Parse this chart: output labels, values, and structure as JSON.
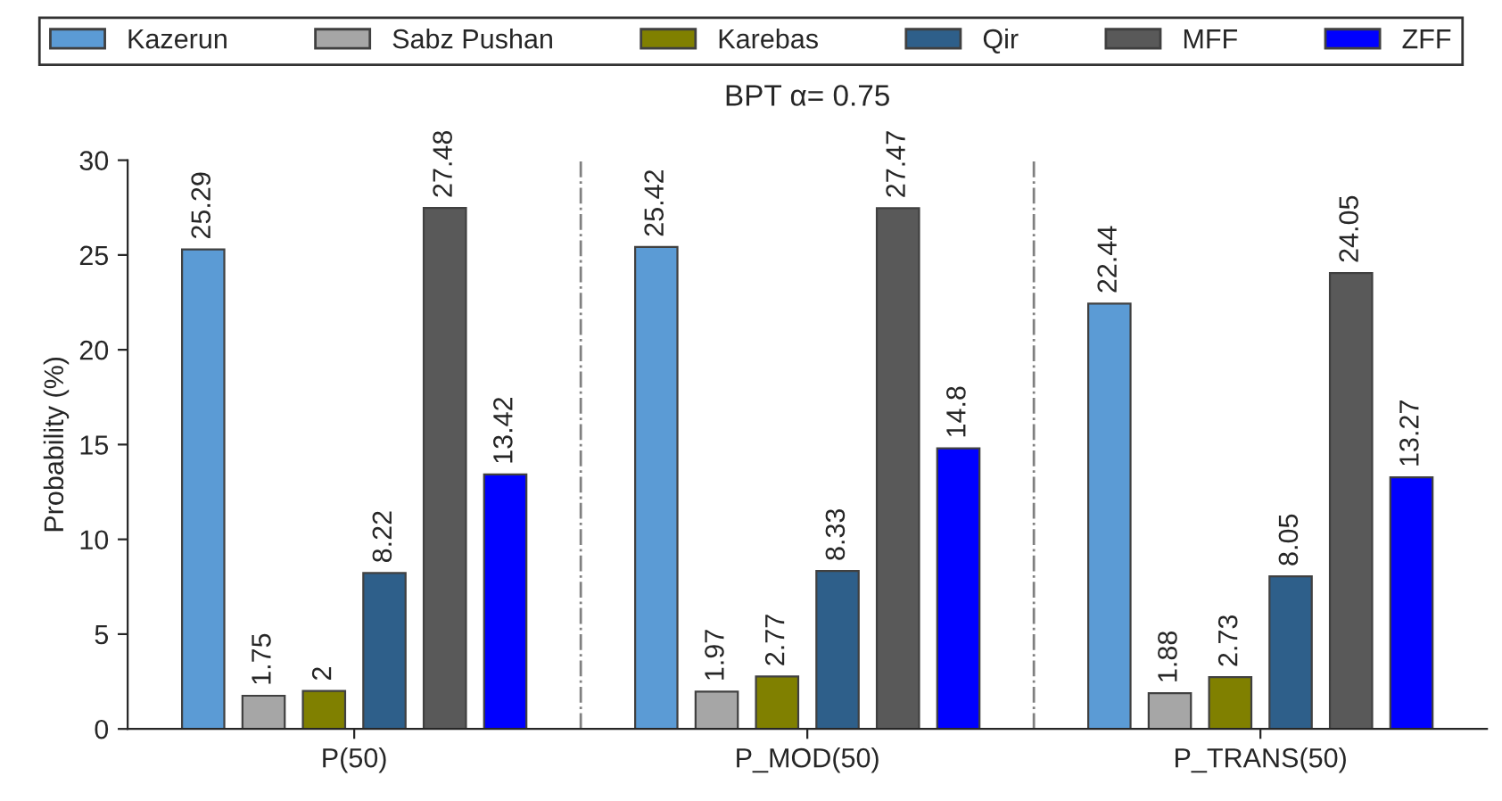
{
  "chart_data": {
    "type": "bar",
    "title": "BPT α= 0.75",
    "ylabel": "Probability (%)",
    "categories": [
      "P(50)",
      "P_MOD(50)",
      "P_TRANS(50)"
    ],
    "series": [
      {
        "name": "Kazerun",
        "color": "#5b9bd5",
        "values": [
          25.29,
          25.42,
          22.44
        ]
      },
      {
        "name": "Sabz Pushan",
        "color": "#a6a6a6",
        "values": [
          1.75,
          1.97,
          1.88
        ]
      },
      {
        "name": "Karebas",
        "color": "#808000",
        "values": [
          2,
          2.77,
          2.73
        ]
      },
      {
        "name": "Qir",
        "color": "#2e5f8a",
        "values": [
          8.22,
          8.33,
          8.05
        ]
      },
      {
        "name": "MFF",
        "color": "#595959",
        "values": [
          27.48,
          27.47,
          24.05
        ]
      },
      {
        "name": "ZFF",
        "color": "#0000ff",
        "values": [
          13.42,
          14.8,
          13.27
        ]
      }
    ],
    "ylim": [
      0,
      30
    ],
    "yticks": [
      0,
      5,
      10,
      15,
      20,
      25,
      30
    ],
    "data_labels": true,
    "legend": "top",
    "grid": false
  }
}
